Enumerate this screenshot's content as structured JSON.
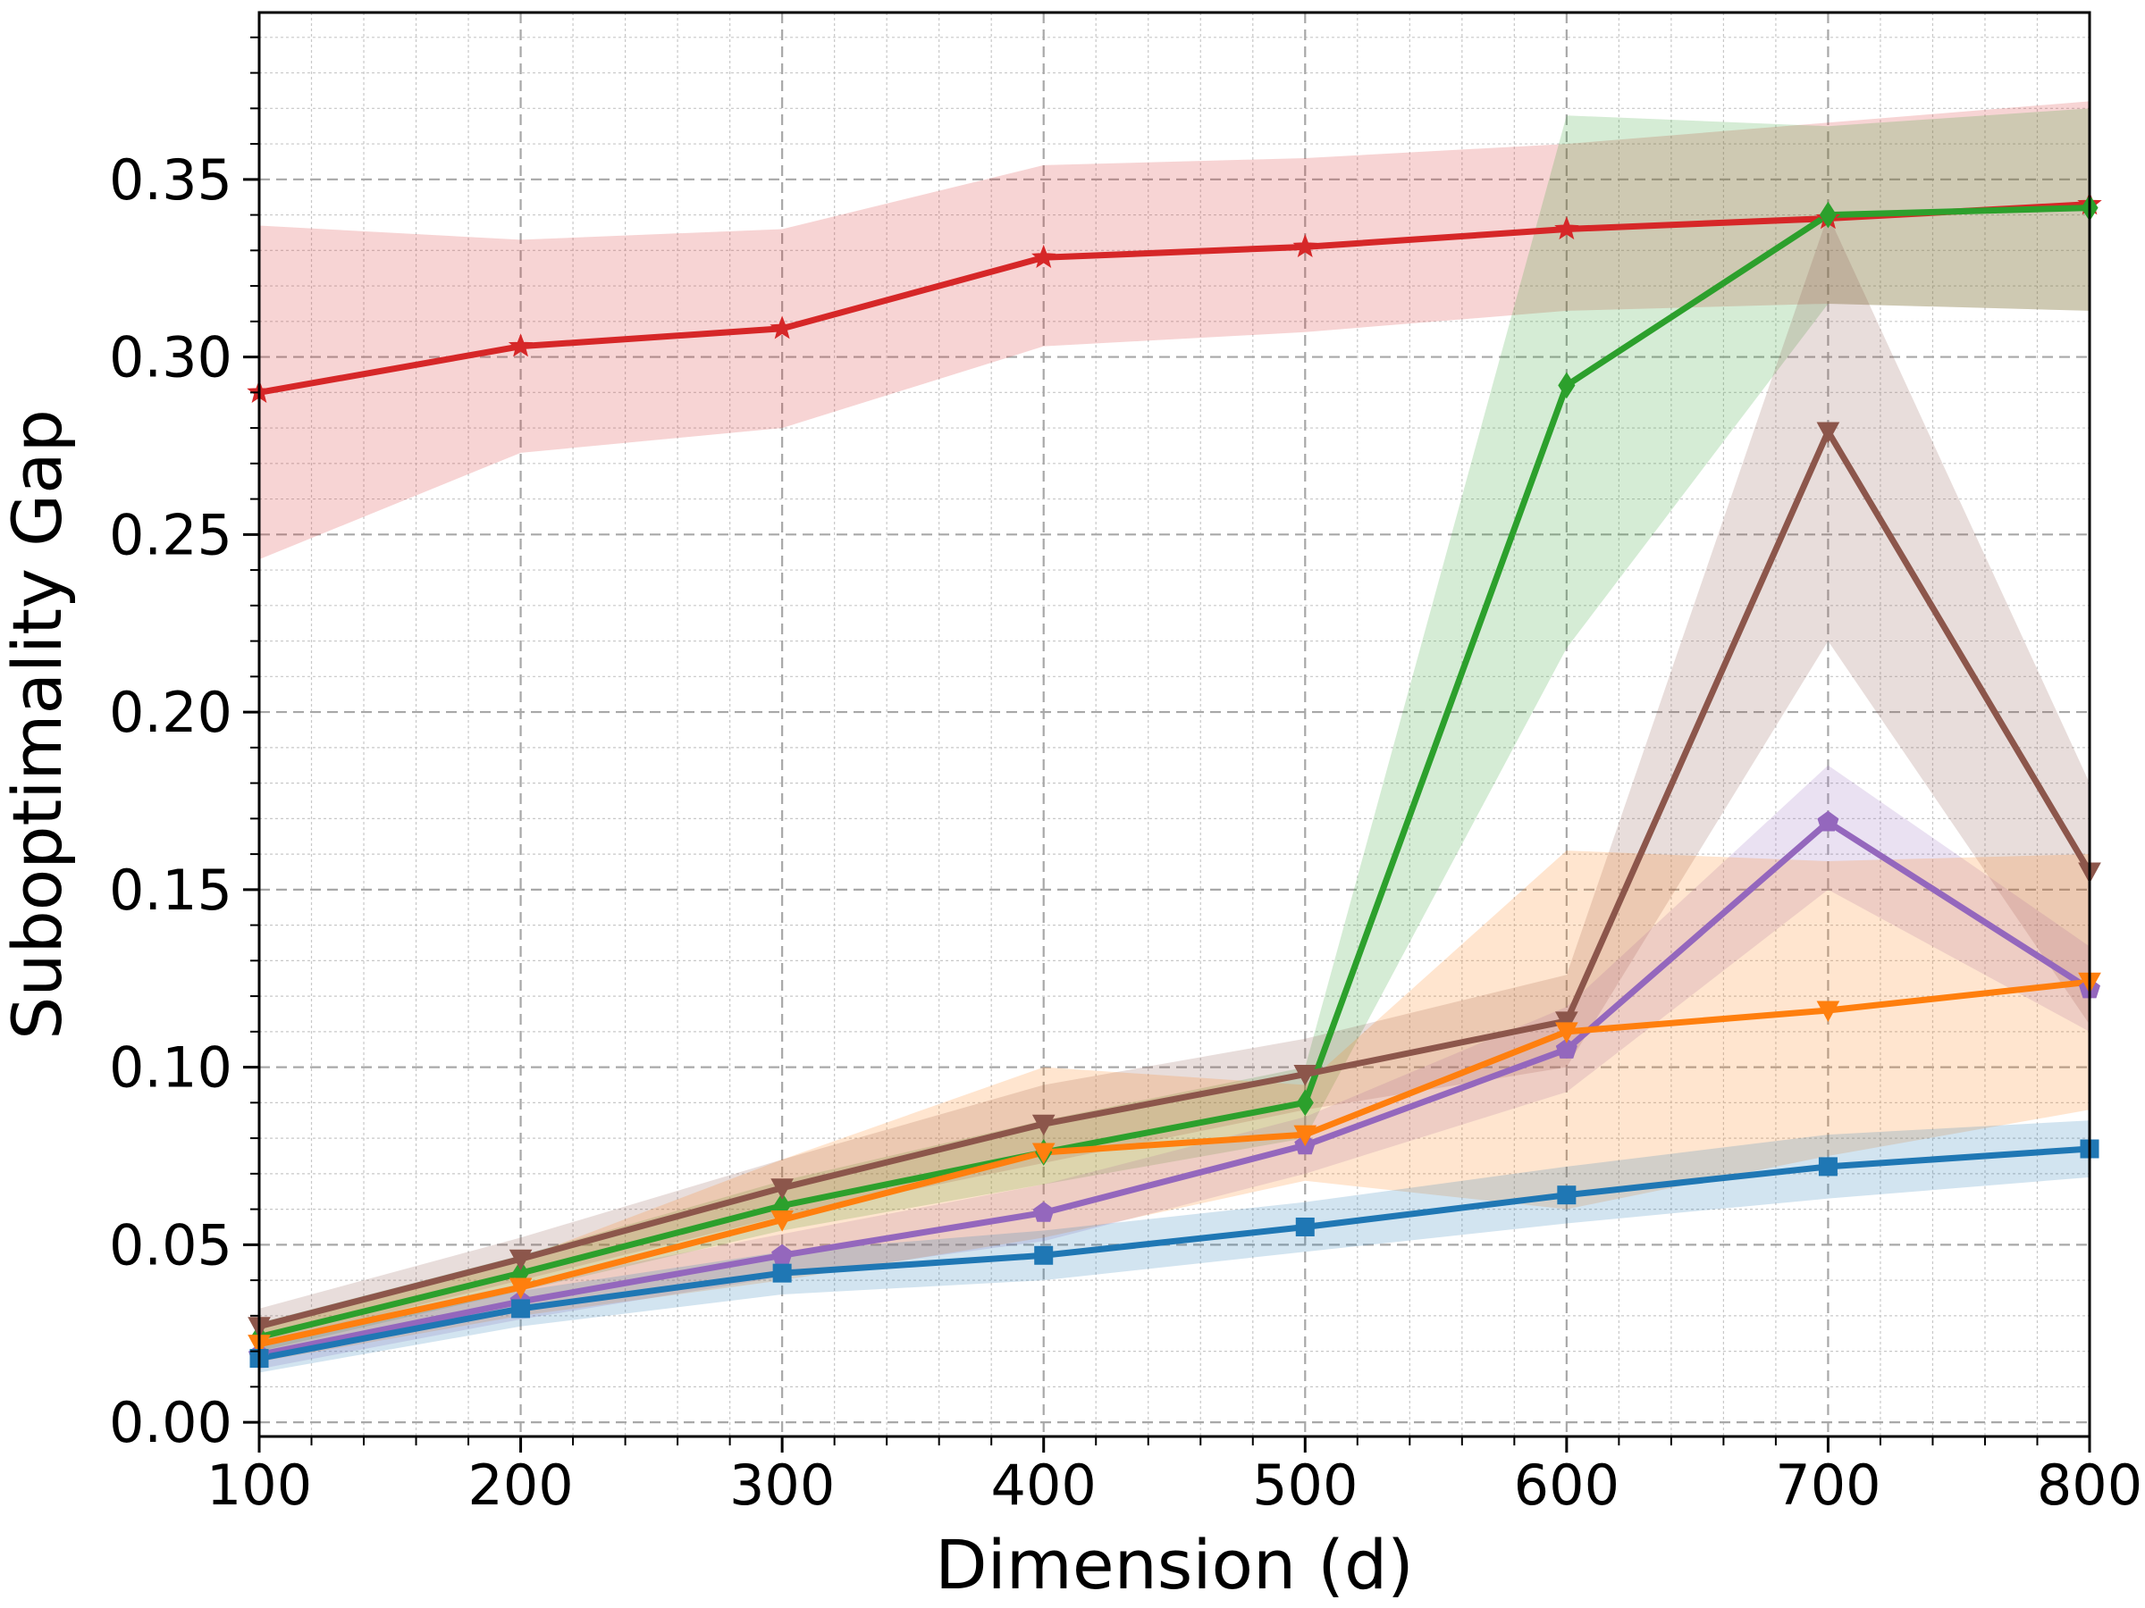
{
  "chart_data": {
    "type": "line",
    "title": "",
    "xlabel": "Dimension (d)",
    "ylabel": "Suboptimality Gap",
    "xlim": [
      100,
      800
    ],
    "ylim": [
      -0.004,
      0.397
    ],
    "xticks": [
      100,
      200,
      300,
      400,
      500,
      600,
      700,
      800
    ],
    "xtick_labels": [
      "100",
      "200",
      "300",
      "400",
      "500",
      "600",
      "700",
      "800"
    ],
    "yticks": [
      0.0,
      0.05,
      0.1,
      0.15,
      0.2,
      0.25,
      0.3,
      0.35
    ],
    "ytick_labels": [
      "0.00",
      "0.05",
      "0.10",
      "0.15",
      "0.20",
      "0.25",
      "0.30",
      "0.35"
    ],
    "grid": true,
    "x": [
      100,
      200,
      300,
      400,
      500,
      600,
      700,
      800
    ],
    "series": [
      {
        "color": "#d62728",
        "marker": "star",
        "values": [
          0.29,
          0.303,
          0.308,
          0.328,
          0.331,
          0.336,
          0.339,
          0.343
        ],
        "lower": [
          0.243,
          0.273,
          0.28,
          0.303,
          0.307,
          0.313,
          0.315,
          0.313
        ],
        "upper": [
          0.337,
          0.333,
          0.336,
          0.354,
          0.356,
          0.36,
          0.366,
          0.372
        ]
      },
      {
        "color": "#2ca02c",
        "marker": "diamond",
        "values": [
          0.024,
          0.042,
          0.061,
          0.076,
          0.09,
          0.292,
          0.34,
          0.342
        ],
        "lower": [
          0.02,
          0.037,
          0.054,
          0.067,
          0.08,
          0.218,
          0.315,
          0.313
        ],
        "upper": [
          0.028,
          0.047,
          0.068,
          0.085,
          0.1,
          0.368,
          0.365,
          0.37
        ]
      },
      {
        "color": "#8c564b",
        "marker": "triangle-down",
        "values": [
          0.027,
          0.046,
          0.066,
          0.084,
          0.098,
          0.113,
          0.279,
          0.155
        ],
        "lower": [
          0.022,
          0.04,
          0.058,
          0.073,
          0.088,
          0.1,
          0.22,
          0.112
        ],
        "upper": [
          0.032,
          0.052,
          0.074,
          0.095,
          0.108,
          0.126,
          0.34,
          0.18
        ]
      },
      {
        "color": "#9467bd",
        "marker": "pentagon",
        "values": [
          0.019,
          0.034,
          0.047,
          0.059,
          0.078,
          0.105,
          0.169,
          0.122
        ],
        "lower": [
          0.015,
          0.029,
          0.041,
          0.051,
          0.07,
          0.093,
          0.15,
          0.11
        ],
        "upper": [
          0.023,
          0.039,
          0.053,
          0.067,
          0.086,
          0.117,
          0.185,
          0.134
        ]
      },
      {
        "color": "#ff7f0e",
        "marker": "triangle-down",
        "values": [
          0.022,
          0.038,
          0.057,
          0.076,
          0.081,
          0.11,
          0.116,
          0.124
        ],
        "lower": [
          0.017,
          0.03,
          0.04,
          0.052,
          0.068,
          0.06,
          0.075,
          0.088
        ],
        "upper": [
          0.027,
          0.046,
          0.074,
          0.1,
          0.095,
          0.161,
          0.158,
          0.16
        ]
      },
      {
        "color": "#1f77b4",
        "marker": "square",
        "values": [
          0.018,
          0.032,
          0.042,
          0.047,
          0.055,
          0.064,
          0.072,
          0.077
        ],
        "lower": [
          0.014,
          0.027,
          0.036,
          0.04,
          0.048,
          0.056,
          0.063,
          0.069
        ],
        "upper": [
          0.022,
          0.037,
          0.048,
          0.054,
          0.062,
          0.072,
          0.081,
          0.085
        ]
      }
    ]
  }
}
